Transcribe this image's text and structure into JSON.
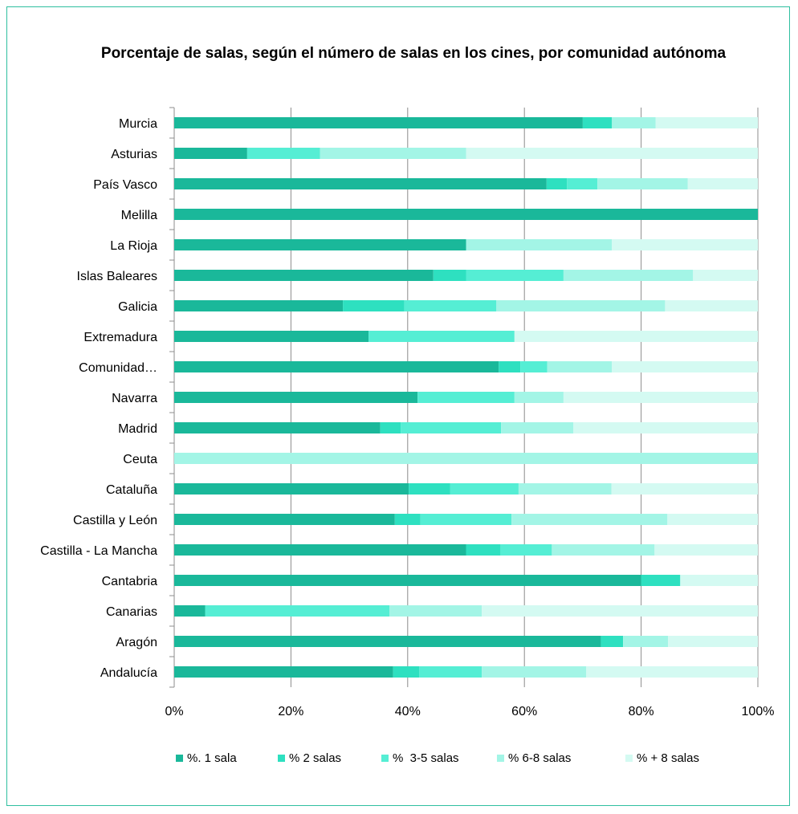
{
  "chart_data": {
    "type": "bar",
    "orientation": "horizontal",
    "stacked": "percent",
    "title": "Porcentaje de salas, según el número de salas en los cines, por comunidad autónoma",
    "categories": [
      "Murcia",
      "Asturias",
      "País Vasco",
      "Melilla",
      "La Rioja",
      "Islas Baleares",
      "Galicia",
      "Extremadura",
      "Comunidad…",
      "Navarra",
      "Madrid",
      "Ceuta",
      "Cataluña",
      "Castilla y León",
      "Castilla - La Mancha",
      "Cantabria",
      "Canarias",
      "Aragón",
      "Andalucía"
    ],
    "series": [
      {
        "name": "%. 1 sala",
        "color": "#1ab89a",
        "values": [
          70,
          12.5,
          63.8,
          100,
          50,
          44.4,
          28.9,
          33.3,
          55.6,
          41.7,
          35.3,
          0,
          40.2,
          37.8,
          50,
          80,
          5.3,
          73.1,
          37.5
        ]
      },
      {
        "name": "% 2 salas",
        "color": "#2ee0c0",
        "values": [
          5,
          0,
          3.5,
          0,
          0,
          5.6,
          10.5,
          0,
          3.7,
          0,
          3.5,
          0,
          7.1,
          4.4,
          5.9,
          6.7,
          0,
          3.8,
          4.5
        ]
      },
      {
        "name": "%  3-5 salas",
        "color": "#55eed4",
        "values": [
          0,
          12.5,
          5.2,
          0,
          0,
          16.7,
          15.8,
          25,
          4.6,
          16.6,
          17.2,
          0,
          11.7,
          15.6,
          8.8,
          0,
          31.6,
          0,
          10.7
        ]
      },
      {
        "name": "% 6-8 salas",
        "color": "#a3f5e6",
        "values": [
          7.5,
          25,
          15.5,
          0,
          25,
          22.2,
          28.9,
          0,
          11.1,
          8.4,
          12.4,
          100,
          15.9,
          26.7,
          17.6,
          0,
          15.8,
          7.7,
          17.9
        ]
      },
      {
        "name": "% + 8 salas",
        "color": "#d4faf2",
        "values": [
          17.5,
          50,
          12,
          0,
          25,
          11.1,
          15.9,
          41.7,
          25,
          33.3,
          31.6,
          0,
          25.1,
          15.5,
          17.7,
          13.3,
          47.3,
          15.4,
          29.4
        ]
      }
    ],
    "xlim": [
      0,
      100
    ],
    "xticks": [
      "0%",
      "20%",
      "40%",
      "60%",
      "80%",
      "100%"
    ],
    "grid": true,
    "legend": "bottom"
  }
}
